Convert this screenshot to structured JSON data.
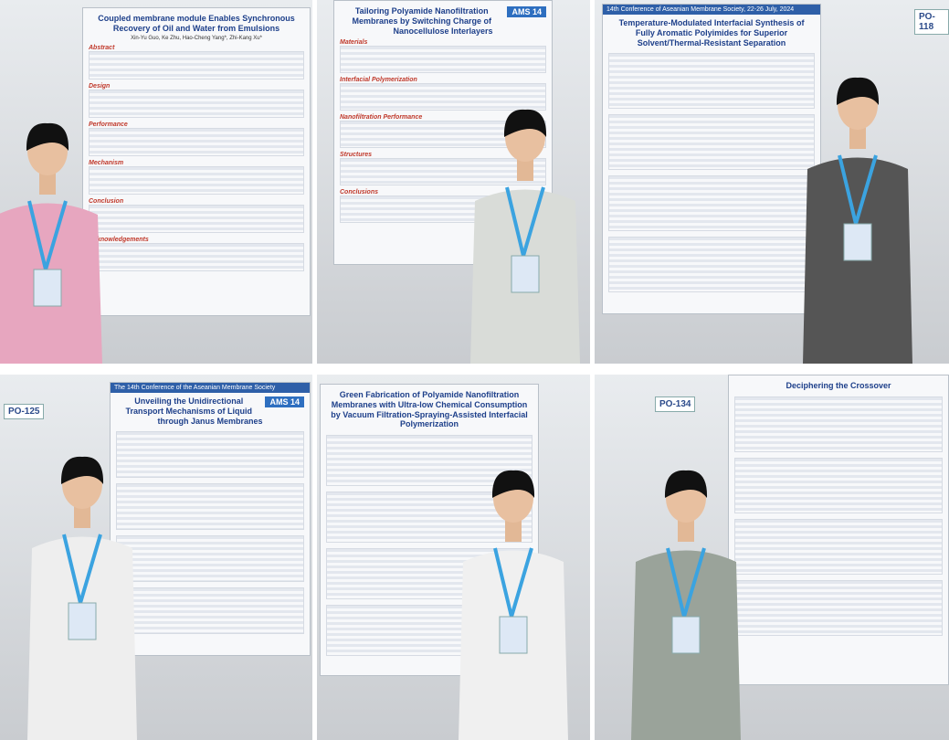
{
  "panels": [
    {
      "title": "Coupled membrane module Enables Synchronous Recovery of Oil and Water from Emulsions",
      "authors": "Xin-Yu Guo, Ke Zhu, Hao-Cheng Yang*, Zhi-Kang Xu*",
      "sections": [
        "Abstract",
        "Design",
        "Performance",
        "Mechanism",
        "Conclusion",
        "Acknowledgements"
      ]
    },
    {
      "badge": "AMS 14",
      "title": "Tailoring Polyamide Nanofiltration Membranes by Switching Charge of Nanocellulose Interlayers",
      "sections": [
        "Materials",
        "Interfacial Polymerization",
        "Nanofiltration Performance",
        "Structures",
        "Conclusions"
      ]
    },
    {
      "header": "14th Conference of Aseanian Membrane Society, 22-26 July, 2024",
      "title": "Temperature-Modulated Interfacial Synthesis of Fully Aromatic Polyimides for Superior Solvent/Thermal-Resistant Separation",
      "board": "PO-118"
    },
    {
      "header": "The 14th Conference of the Aseanian Membrane Society",
      "badge": "AMS 14",
      "title": "Unveiling the Unidirectional Transport Mechanisms of Liquid through Janus Membranes",
      "board": "PO-125"
    },
    {
      "title": "Green Fabrication of Polyamide Nanofiltration Membranes with Ultra-low Chemical Consumption by Vacuum Filtration-Spraying-Assisted Interfacial Polymerization"
    },
    {
      "title": "Deciphering the Crossover",
      "board": "PO-134"
    }
  ]
}
